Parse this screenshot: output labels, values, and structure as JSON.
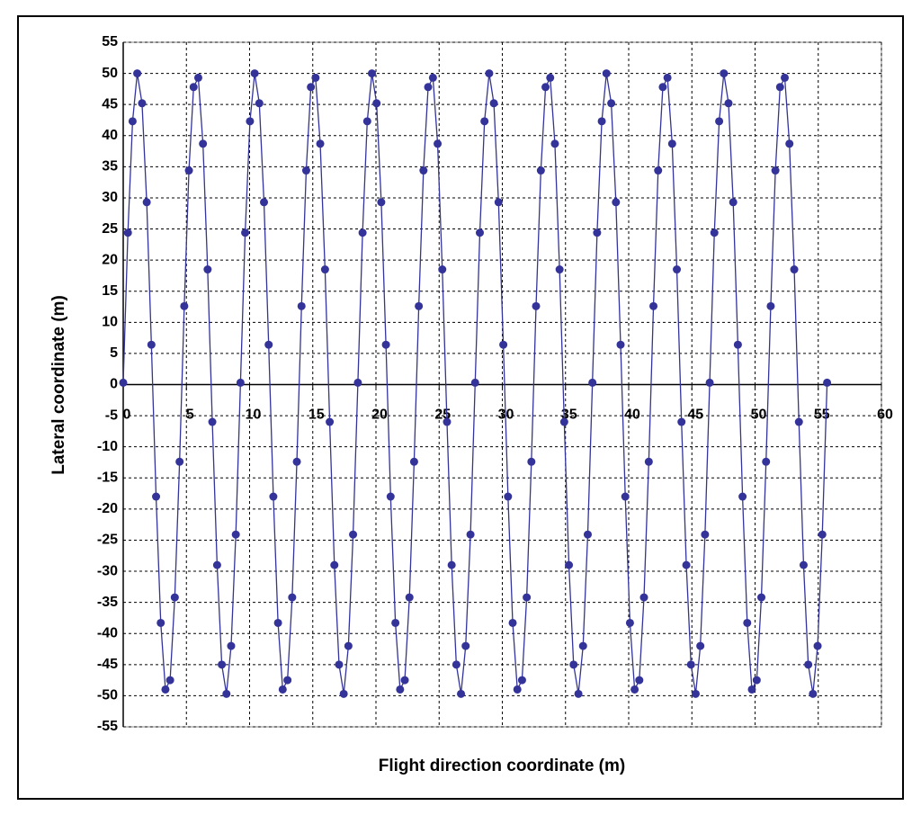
{
  "chart_data": {
    "type": "line",
    "x_label": "Flight direction coordinate (m)",
    "y_label": "Lateral coordinate (m)",
    "color": "#333399",
    "grid": true,
    "xlim": [
      0,
      60
    ],
    "xticks": [
      0,
      5,
      10,
      15,
      20,
      25,
      30,
      35,
      40,
      45,
      50,
      55,
      60
    ],
    "ylim": [
      -55,
      55
    ],
    "yticks": [
      -55,
      -50,
      -45,
      -40,
      -35,
      -30,
      -25,
      -20,
      -15,
      -10,
      -5,
      0,
      5,
      10,
      15,
      20,
      25,
      30,
      35,
      40,
      45,
      50,
      55
    ],
    "x": [
      0,
      0.37,
      0.74,
      1.11,
      1.49,
      1.86,
      2.23,
      2.6,
      2.97,
      3.34,
      3.71,
      4.08,
      4.46,
      4.83,
      5.2,
      5.57,
      5.94,
      6.31,
      6.68,
      7.05,
      7.43,
      7.8,
      8.17,
      8.54,
      8.91,
      9.28,
      9.65,
      10.03,
      10.4,
      10.77,
      11.14,
      11.51,
      11.88,
      12.25,
      12.62,
      13.0,
      13.37,
      13.74,
      14.11,
      14.48,
      14.85,
      15.22,
      15.59,
      15.97,
      16.34,
      16.71,
      17.08,
      17.45,
      17.82,
      18.19,
      18.57,
      18.94,
      19.31,
      19.68,
      20.05,
      20.42,
      20.79,
      21.16,
      21.54,
      21.91,
      22.28,
      22.65,
      23.02,
      23.39,
      23.76,
      24.13,
      24.51,
      24.88,
      25.25,
      25.62,
      25.99,
      26.36,
      26.73,
      27.1,
      27.48,
      27.85,
      28.22,
      28.59,
      28.96,
      29.33,
      29.7,
      30.08,
      30.45,
      30.82,
      31.19,
      31.56,
      31.93,
      32.3,
      32.67,
      33.05,
      33.42,
      33.79,
      34.16,
      34.53,
      34.9,
      35.27,
      35.64,
      36.02,
      36.39,
      36.76,
      37.13,
      37.5,
      37.87,
      38.24,
      38.62,
      38.99,
      39.36,
      39.73,
      40.1,
      40.47,
      40.84,
      41.21,
      41.59,
      41.96,
      42.33,
      42.7,
      43.07,
      43.44,
      43.81,
      44.18,
      44.56,
      44.93,
      45.3,
      45.67,
      46.04,
      46.41,
      46.78,
      47.16,
      47.53,
      47.9,
      48.27,
      48.64,
      49.01,
      49.38,
      49.75,
      50.13,
      50.5,
      50.87,
      51.24,
      51.61,
      51.98,
      52.35,
      52.72,
      53.1,
      53.47,
      53.84,
      54.21,
      54.58,
      54.95,
      55.32,
      55.7
    ],
    "values": [
      0.3,
      24.4,
      42.3,
      50,
      45.2,
      29.3,
      6.4,
      -18,
      -38.3,
      -49,
      -47.5,
      -34.2,
      -12.4,
      12.6,
      34.4,
      47.8,
      49.3,
      38.7,
      18.5,
      -6,
      -29,
      -45,
      -49.7,
      -42,
      -24.1,
      0.3,
      24.4,
      42.3,
      50,
      45.2,
      29.3,
      6.4,
      -18,
      -38.3,
      -49,
      -47.5,
      -34.2,
      -12.4,
      12.6,
      34.4,
      47.8,
      49.3,
      38.7,
      18.5,
      -6,
      -29,
      -45,
      -49.7,
      -42,
      -24.1,
      0.3,
      24.4,
      42.3,
      50,
      45.2,
      29.3,
      6.4,
      -18,
      -38.3,
      -49,
      -47.5,
      -34.2,
      -12.4,
      12.6,
      34.4,
      47.8,
      49.3,
      38.7,
      18.5,
      -6,
      -29,
      -45,
      -49.7,
      -42,
      -24.1,
      0.3,
      24.4,
      42.3,
      50,
      45.2,
      29.3,
      6.4,
      -18,
      -38.3,
      -49,
      -47.5,
      -34.2,
      -12.4,
      12.6,
      34.4,
      47.8,
      49.3,
      38.7,
      18.5,
      -6,
      -29,
      -45,
      -49.7,
      -42,
      -24.1,
      0.3,
      24.4,
      42.3,
      50,
      45.2,
      29.3,
      6.4,
      -18,
      -38.3,
      -49,
      -47.5,
      -34.2,
      -12.4,
      12.6,
      34.4,
      47.8,
      49.3,
      38.7,
      18.5,
      -6,
      -29,
      -45,
      -49.7,
      -42,
      -24.1,
      0.3,
      24.4,
      42.3,
      50,
      45.2,
      29.3,
      6.4,
      -18,
      -38.3,
      -49,
      -47.5,
      -34.2,
      -12.4,
      12.6,
      34.4,
      47.8,
      49.3,
      38.7,
      18.5,
      -6,
      -29,
      -45,
      -49.7,
      -42,
      -24.1,
      0.3
    ]
  }
}
